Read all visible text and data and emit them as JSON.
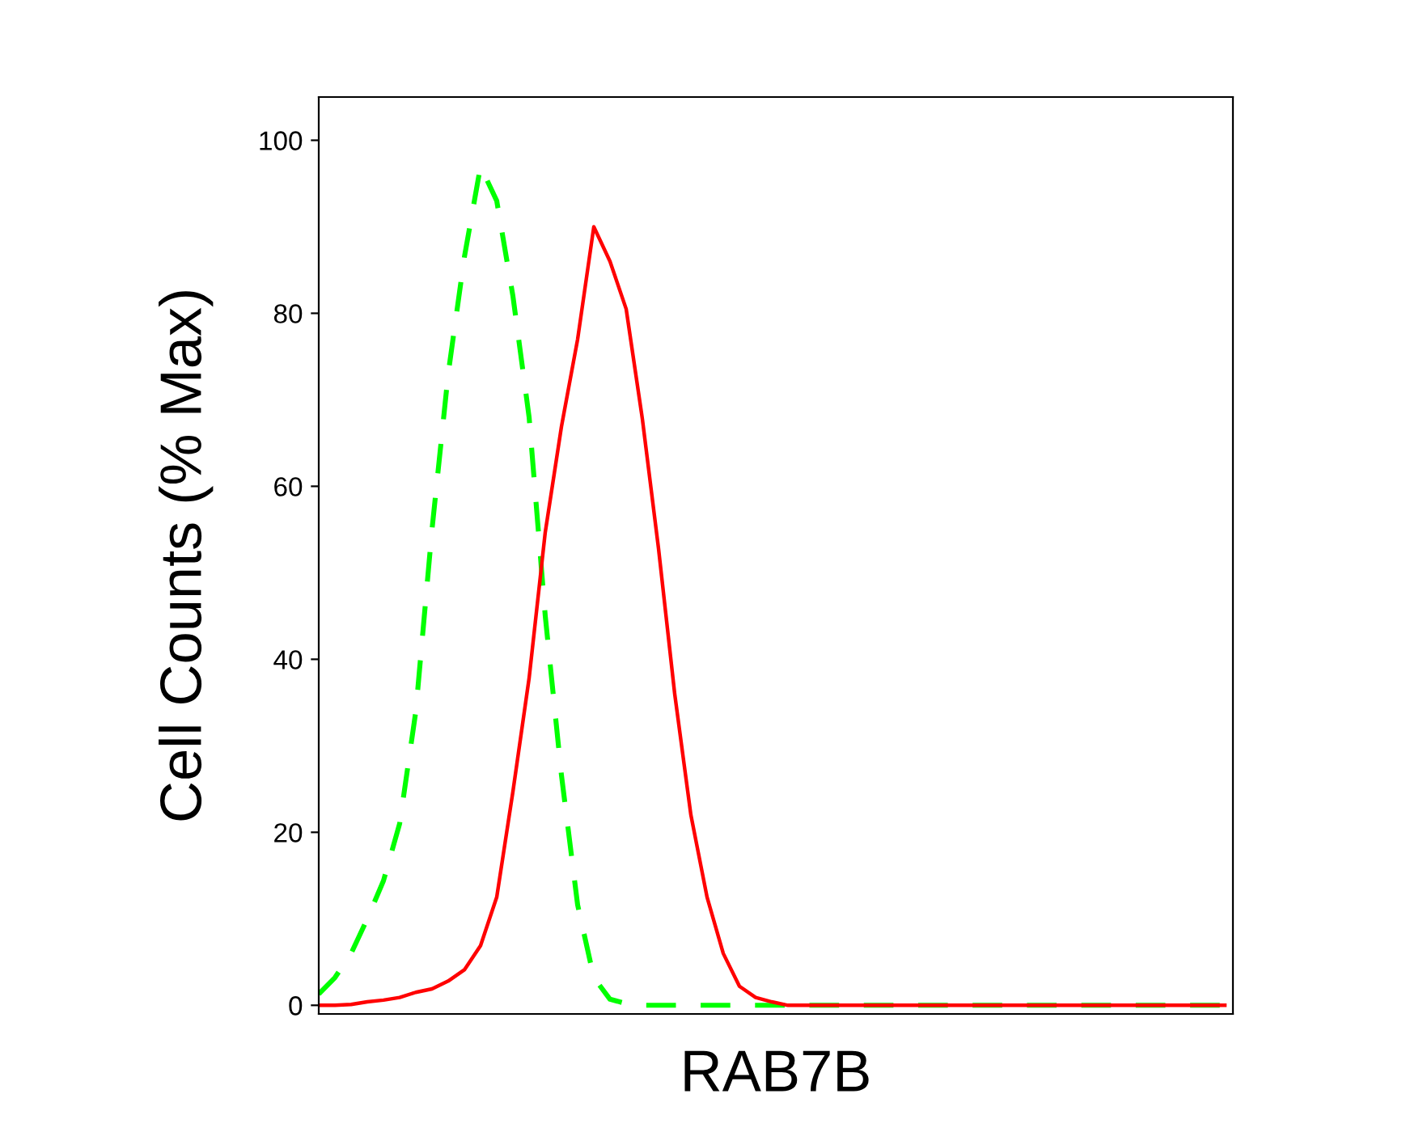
{
  "chart_data": {
    "type": "line",
    "ylabel": "Cell Counts (% Max)",
    "xlabel": "RAB7B",
    "categories": [
      null,
      null,
      null,
      null,
      null,
      null,
      null,
      null,
      null,
      null,
      null,
      null,
      null,
      null,
      null,
      null,
      null,
      null,
      null,
      null,
      null,
      null,
      null,
      null,
      null,
      null,
      null,
      null,
      null,
      null,
      null,
      null,
      null,
      null,
      null,
      null,
      null,
      null,
      null,
      null,
      null,
      null,
      null,
      null,
      null,
      null,
      null,
      null,
      null,
      null,
      null,
      null,
      null,
      null,
      null,
      null,
      null
    ],
    "series": [
      {
        "color": "#00ff00",
        "line_style": "dashed",
        "values": [
          1.3,
          3.2,
          6,
          10,
          14.4,
          21,
          34,
          55,
          73,
          86.5,
          97,
          93,
          82,
          68,
          45,
          26.6,
          11.6,
          3.2,
          0.7,
          0.2,
          0,
          0,
          0,
          0,
          0,
          0,
          0,
          0,
          0,
          0,
          0,
          0,
          0,
          0,
          0,
          0,
          0,
          0,
          0,
          0,
          0,
          0,
          0,
          0,
          0,
          0,
          0,
          0,
          0,
          0,
          0,
          0,
          0,
          0,
          0,
          0,
          0
        ]
      },
      {
        "color": "#ff0000",
        "line_style": "solid",
        "values": [
          0,
          0,
          0.1,
          0.4,
          0.6,
          0.9,
          1.5,
          1.9,
          2.8,
          4.1,
          6.9,
          12.5,
          24.7,
          37.8,
          54.7,
          66.9,
          77,
          90,
          86,
          80.5,
          67.8,
          52.8,
          36,
          22,
          12.5,
          6,
          2.2,
          0.9,
          0.4,
          0,
          0,
          0,
          0,
          0,
          0,
          0,
          0,
          0,
          0,
          0,
          0,
          0,
          0,
          0,
          0,
          0,
          0,
          0,
          0,
          0,
          0,
          0,
          0,
          0,
          0,
          0,
          0
        ]
      }
    ],
    "ylim": [
      -1,
      105
    ],
    "yticks": [
      0,
      20,
      40,
      60,
      80,
      100
    ],
    "grid": false,
    "legend": false
  }
}
